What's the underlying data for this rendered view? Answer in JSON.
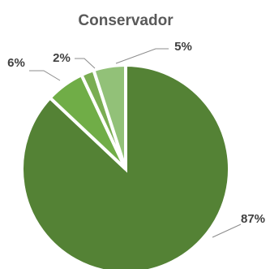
{
  "chart_data": {
    "type": "pie",
    "title": "Conservador",
    "slices": [
      {
        "value": 87,
        "label": "87%",
        "color": "#548235"
      },
      {
        "value": 6,
        "label": "6%",
        "color": "#70ad47"
      },
      {
        "value": 2,
        "label": "2%",
        "color": "#7aad52"
      },
      {
        "value": 5,
        "label": "5%",
        "color": "#92c178"
      }
    ]
  }
}
